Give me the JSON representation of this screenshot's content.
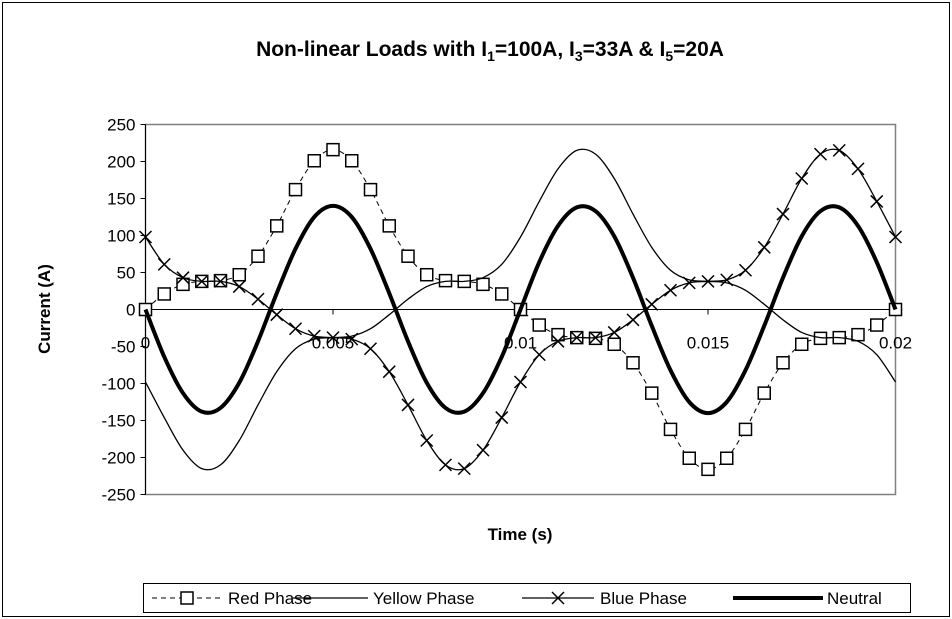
{
  "chart_data": {
    "type": "line",
    "title": [
      "Non-linear Loads with I",
      "1",
      "=100A, I",
      "3",
      "=33A & I",
      "5",
      "=20A"
    ],
    "x_label": "Time (s)",
    "y_label": "Current (A)",
    "x": [
      0,
      0.0005,
      0.001,
      0.0015,
      0.002,
      0.0025,
      0.003,
      0.0035,
      0.004,
      0.0045,
      0.005,
      0.0055,
      0.006,
      0.0065,
      0.007,
      0.0075,
      0.008,
      0.0085,
      0.009,
      0.0095,
      0.01,
      0.0105,
      0.011,
      0.0115,
      0.012,
      0.0125,
      0.013,
      0.0135,
      0.014,
      0.0145,
      0.015,
      0.0155,
      0.016,
      0.0165,
      0.017,
      0.0175,
      0.018,
      0.0185,
      0.019,
      0.0195,
      0.02
    ],
    "series": [
      {
        "name": "Red Phase",
        "color": "#000000",
        "line_style": "dashed",
        "line_width": 1,
        "marker": "square",
        "values": [
          0,
          21,
          34,
          38,
          39,
          47,
          72,
          113,
          162,
          201,
          216,
          201,
          162,
          113,
          72,
          47,
          39,
          38,
          34,
          21,
          0,
          -21,
          -34,
          -38,
          -39,
          -47,
          -72,
          -113,
          -162,
          -201,
          -216,
          -201,
          -162,
          -113,
          -72,
          -47,
          -39,
          -38,
          -34,
          -21,
          0
        ]
      },
      {
        "name": "Yellow Phase",
        "color": "#000000",
        "line_style": "solid",
        "line_width": 1.3,
        "marker": "none",
        "values": [
          -98,
          -146,
          -190,
          -215,
          -210,
          -177,
          -129,
          -84,
          -53,
          -40,
          -38,
          -36,
          -26,
          -7,
          14,
          31,
          38,
          38,
          43,
          61,
          98,
          146,
          190,
          215,
          210,
          177,
          129,
          84,
          53,
          40,
          38,
          36,
          26,
          7,
          -14,
          -31,
          -38,
          -38,
          -43,
          -61,
          -98
        ]
      },
      {
        "name": "Blue Phase",
        "color": "#000000",
        "line_style": "solid",
        "line_width": 1.3,
        "marker": "x",
        "values": [
          98,
          61,
          43,
          38,
          38,
          31,
          14,
          -7,
          -26,
          -36,
          -38,
          -40,
          -53,
          -84,
          -129,
          -177,
          -210,
          -215,
          -190,
          -146,
          -98,
          -61,
          -43,
          -38,
          -38,
          -31,
          -14,
          7,
          26,
          36,
          38,
          40,
          53,
          84,
          129,
          177,
          210,
          215,
          190,
          146,
          98
        ]
      },
      {
        "name": "Neutral",
        "color": "#000000",
        "line_style": "solid",
        "line_width": 4,
        "marker": "none",
        "values": [
          0,
          -64,
          -113,
          -138,
          -133,
          -99,
          -43,
          22,
          82,
          125,
          140,
          125,
          82,
          22,
          -43,
          -99,
          -133,
          -138,
          -113,
          -64,
          0,
          64,
          113,
          138,
          133,
          99,
          43,
          -22,
          -82,
          -125,
          -140,
          -125,
          -82,
          -22,
          43,
          99,
          133,
          138,
          113,
          64,
          0
        ]
      }
    ],
    "xlim": [
      0,
      0.02
    ],
    "xticks": [
      0,
      0.005,
      0.01,
      0.015,
      0.02
    ],
    "ylim": [
      -250,
      250
    ],
    "yticks": [
      -250,
      -200,
      -150,
      -100,
      -50,
      0,
      50,
      100,
      150,
      200,
      250
    ],
    "grid": false,
    "legend": "bottom"
  }
}
